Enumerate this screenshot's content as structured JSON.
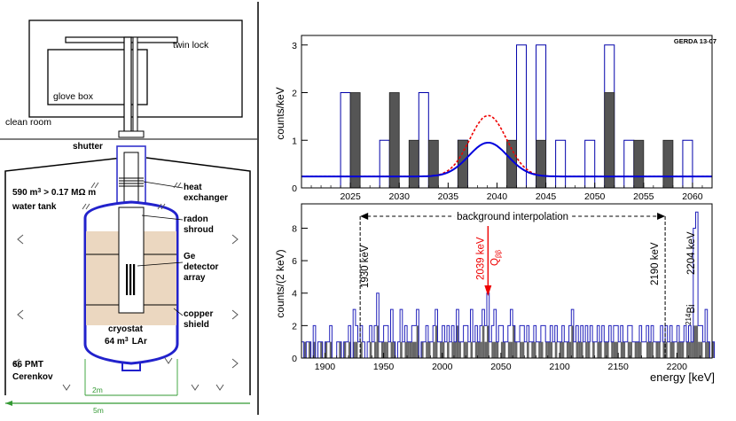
{
  "schematic": {
    "labels": {
      "twin_lock": "twin lock",
      "glove_box": "glove box",
      "clean_room": "clean room",
      "shutter": "shutter",
      "water_volume": "590 m",
      "water_volume_exp": "3",
      "resistivity": "> 0.17 MΩ m",
      "water_tank": "water tank",
      "heat": "heat",
      "exchanger": "exchanger",
      "radon": "radon",
      "shroud": "shroud",
      "ge": "Ge",
      "detector": "detector",
      "array": "array",
      "copper": "copper",
      "shield": "shield",
      "cryostat": "cryostat",
      "lar_volume": "64 m",
      "lar_volume_exp": "3",
      "lar": "LAr",
      "pmt": "66 PMT",
      "cerenkov": "Cerenkov",
      "dim_2m": "2m",
      "dim_5m": "5m"
    }
  },
  "chart_data": [
    {
      "type": "bar",
      "tag": "GERDA 13-07",
      "ylabel": "counts/keV",
      "xlim": [
        2020,
        2062
      ],
      "ylim": [
        0,
        3.2
      ],
      "xticks": [
        2025,
        2030,
        2035,
        2040,
        2045,
        2050,
        2055,
        2060
      ],
      "yticks": [
        0,
        1,
        2,
        3
      ],
      "open_bins": [
        {
          "x": 2024,
          "v": 2
        },
        {
          "x": 2028,
          "v": 1
        },
        {
          "x": 2032,
          "v": 2
        },
        {
          "x": 2036,
          "v": 1
        },
        {
          "x": 2042,
          "v": 3
        },
        {
          "x": 2044,
          "v": 3
        },
        {
          "x": 2046,
          "v": 1
        },
        {
          "x": 2049,
          "v": 1
        },
        {
          "x": 2051,
          "v": 3
        },
        {
          "x": 2053,
          "v": 1
        },
        {
          "x": 2059,
          "v": 1
        }
      ],
      "filled_bins": [
        {
          "x": 2025,
          "v": 2
        },
        {
          "x": 2029,
          "v": 2
        },
        {
          "x": 2031,
          "v": 1
        },
        {
          "x": 2033,
          "v": 1
        },
        {
          "x": 2036,
          "v": 1
        },
        {
          "x": 2041,
          "v": 1
        },
        {
          "x": 2044,
          "v": 1
        },
        {
          "x": 2051,
          "v": 2
        },
        {
          "x": 2054,
          "v": 1
        },
        {
          "x": 2057,
          "v": 1
        }
      ],
      "curves": [
        {
          "name": "background + signal fit",
          "style": "solid blue",
          "baseline": 0.24,
          "peak_x": 2039.1,
          "peak_y": 0.95,
          "sigma": 2.0
        },
        {
          "name": "signal hypothesis",
          "style": "dashed red",
          "baseline": 0.24,
          "peak_x": 2039.1,
          "peak_y": 1.52,
          "sigma": 1.9
        }
      ]
    },
    {
      "type": "bar",
      "ylabel": "counts/(2 keV)",
      "xlabel": "energy  [keV]",
      "xlim": [
        1880,
        2230
      ],
      "ylim": [
        0,
        9.5
      ],
      "xticks": [
        1900,
        1950,
        2000,
        2050,
        2100,
        2150,
        2200
      ],
      "yticks": [
        0,
        2,
        4,
        6,
        8
      ],
      "annotations": {
        "background_interpolation": "background interpolation",
        "e1930": "1930 keV",
        "e2039": "2039 keV",
        "qbb": "Q",
        "qbb_sub": "ββ",
        "e2190": "2190 keV",
        "e2204": "2204 keV",
        "bi": "Bi",
        "bi_sup": "214"
      },
      "line_positions": {
        "left": 1930,
        "right": 2190,
        "arrow": 2039
      },
      "blue_spectrum": [
        1,
        0,
        1,
        1,
        0,
        2,
        0,
        1,
        1,
        0,
        1,
        1,
        2,
        0,
        0,
        1,
        1,
        0,
        1,
        1,
        2,
        0,
        3,
        2,
        1,
        2,
        1,
        0,
        1,
        2,
        1,
        2,
        4,
        1,
        1,
        2,
        2,
        1,
        3,
        1,
        0,
        1,
        3,
        1,
        2,
        1,
        1,
        2,
        2,
        3,
        0,
        1,
        1,
        2,
        1,
        1,
        2,
        3,
        1,
        1,
        2,
        1,
        2,
        1,
        2,
        1,
        3,
        1,
        1,
        2,
        2,
        1,
        3,
        1,
        2,
        1,
        2,
        3,
        2,
        4,
        1,
        2,
        3,
        1,
        2,
        2,
        1,
        1,
        2,
        3,
        2,
        1,
        1,
        2,
        2,
        1,
        2,
        1,
        1,
        2,
        1,
        1,
        2,
        2,
        1,
        1,
        2,
        1,
        2,
        1,
        1,
        2,
        1,
        1,
        2,
        3,
        1,
        2,
        1,
        2,
        1,
        2,
        1,
        2,
        1,
        1,
        2,
        1,
        2,
        1,
        1,
        2,
        1,
        2,
        2,
        1,
        2,
        1,
        1,
        2,
        2,
        1,
        1,
        1,
        2,
        1,
        1,
        2,
        1,
        2,
        1,
        1,
        1,
        2,
        1,
        2,
        1,
        2,
        1,
        1,
        2,
        1,
        1,
        2,
        1,
        2,
        1,
        8,
        9,
        2,
        2,
        1,
        3,
        1,
        0,
        1
      ],
      "gray_spectrum": [
        0,
        1,
        0,
        1,
        0,
        1,
        0,
        0,
        1,
        0,
        1,
        0,
        1,
        0,
        0,
        0,
        1,
        0,
        1,
        0,
        1,
        0,
        1,
        1,
        0,
        1,
        0,
        0,
        0,
        1,
        0,
        1,
        2,
        0,
        1,
        1,
        1,
        0,
        1,
        1,
        0,
        0,
        1,
        0,
        1,
        1,
        1,
        1,
        1,
        2,
        0,
        1,
        0,
        1,
        1,
        0,
        1,
        2,
        0,
        1,
        1,
        0,
        1,
        0,
        1,
        1,
        2,
        1,
        0,
        1,
        1,
        0,
        1,
        0,
        1,
        1,
        1,
        2,
        1,
        2,
        0,
        1,
        1,
        1,
        0,
        1,
        1,
        0,
        1,
        1,
        2,
        1,
        0,
        1,
        1,
        0,
        1,
        0,
        1,
        1,
        0,
        1,
        1,
        0,
        1,
        1,
        1,
        0,
        1,
        0,
        1,
        1,
        0,
        1,
        1,
        2,
        0,
        1,
        1,
        1,
        0,
        1,
        1,
        0,
        1,
        0,
        1,
        1,
        0,
        1,
        1,
        0,
        1,
        1,
        1,
        0,
        1,
        1,
        0,
        1,
        1,
        0,
        1,
        1,
        1,
        0,
        0,
        1,
        1,
        1,
        0,
        1,
        1,
        0,
        1,
        1,
        0,
        1,
        1,
        0,
        1,
        1,
        1,
        0,
        1,
        1,
        1,
        2,
        2,
        1,
        1,
        0,
        1,
        1,
        0,
        1
      ]
    }
  ]
}
